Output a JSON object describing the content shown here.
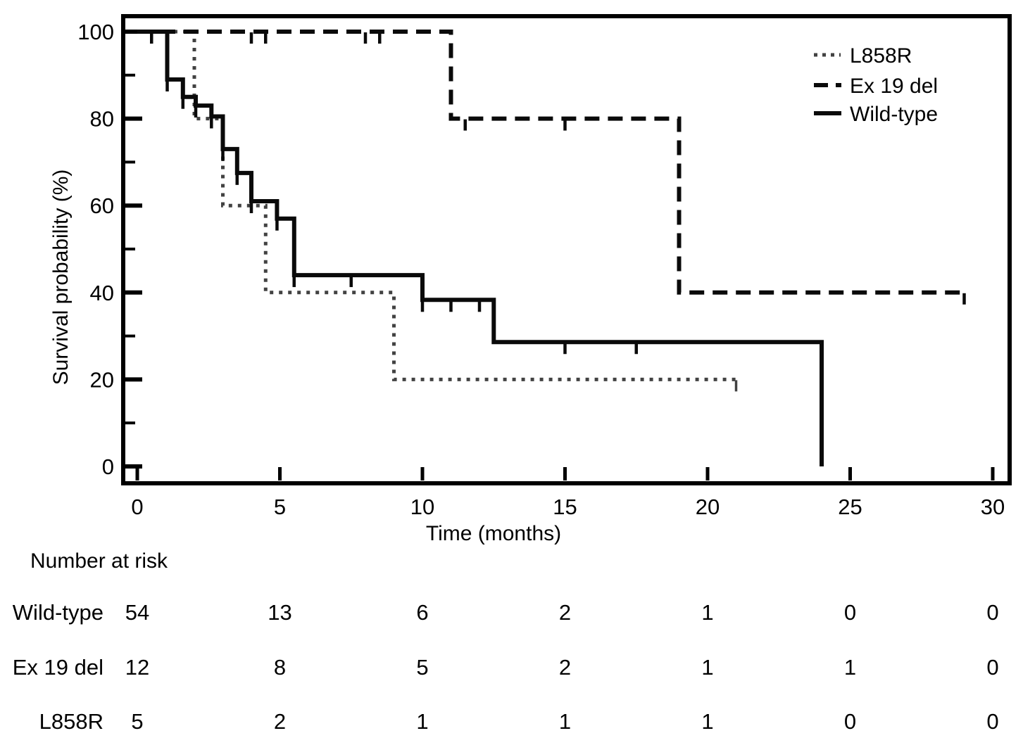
{
  "chart_data": {
    "type": "line",
    "subtype": "kaplan-meier-step",
    "title": "",
    "xlabel": "Time (months)",
    "ylabel": "Survival probability (%)",
    "xlim": [
      0,
      30
    ],
    "ylim": [
      0,
      100
    ],
    "x_ticks": [
      0,
      5,
      10,
      15,
      20,
      25,
      30
    ],
    "y_ticks_major": [
      0,
      20,
      40,
      60,
      80,
      100
    ],
    "y_ticks_minor": [
      10,
      30,
      50,
      70,
      90
    ],
    "grid": false,
    "legend_position": "top-right",
    "axis_color": "#000000",
    "series": [
      {
        "name": "L858R",
        "line_style": "dotted",
        "color": "#424242",
        "drop_times": [
          2,
          3,
          4.5,
          9
        ],
        "survival_levels": [
          100,
          80,
          60,
          40,
          20
        ],
        "end_time": 21,
        "censor_marks": [
          {
            "t": 21,
            "s": 20
          }
        ]
      },
      {
        "name": "Ex 19 del",
        "line_style": "dashed",
        "color": "#0a0a0a",
        "drop_times": [
          11,
          19
        ],
        "survival_levels": [
          100,
          80,
          40
        ],
        "end_time": 29,
        "censor_marks": [
          {
            "t": 4,
            "s": 100
          },
          {
            "t": 4.5,
            "s": 100
          },
          {
            "t": 8,
            "s": 100
          },
          {
            "t": 8.5,
            "s": 100
          },
          {
            "t": 11.5,
            "s": 80
          },
          {
            "t": 15,
            "s": 80
          },
          {
            "t": 29,
            "s": 40
          }
        ]
      },
      {
        "name": "Wild-type",
        "line_style": "solid",
        "color": "#0a0a0a",
        "drop_times": [
          1.05,
          1.6,
          2.05,
          2.6,
          3,
          3.5,
          4,
          4.9,
          5.5,
          10,
          12.5,
          24
        ],
        "survival_levels": [
          100,
          89,
          85,
          83,
          80.5,
          73,
          67.5,
          61,
          57,
          44,
          38.3,
          28.6,
          0
        ],
        "end_time": 24,
        "censor_marks": [
          {
            "t": 0.5,
            "s": 100
          },
          {
            "t": 1.05,
            "s": 89
          },
          {
            "t": 1.6,
            "s": 85
          },
          {
            "t": 2.05,
            "s": 83
          },
          {
            "t": 2.6,
            "s": 80.5
          },
          {
            "t": 3,
            "s": 73
          },
          {
            "t": 3.5,
            "s": 67.5
          },
          {
            "t": 4,
            "s": 61
          },
          {
            "t": 4.9,
            "s": 57
          },
          {
            "t": 5.5,
            "s": 44
          },
          {
            "t": 7.5,
            "s": 44
          },
          {
            "t": 10,
            "s": 38.3
          },
          {
            "t": 11,
            "s": 38.3
          },
          {
            "t": 12,
            "s": 38.3
          },
          {
            "t": 15,
            "s": 28.6
          },
          {
            "t": 17.5,
            "s": 28.6
          }
        ]
      }
    ]
  },
  "risk_table": {
    "title": "Number at risk",
    "time_points": [
      0,
      5,
      10,
      15,
      20,
      25,
      30
    ],
    "rows": [
      {
        "label": "Wild-type",
        "values": [
          54,
          13,
          6,
          2,
          1,
          0,
          0
        ]
      },
      {
        "label": "Ex 19 del",
        "values": [
          12,
          8,
          5,
          2,
          1,
          1,
          0
        ]
      },
      {
        "label": "L858R",
        "values": [
          5,
          2,
          1,
          1,
          1,
          0,
          0
        ]
      }
    ]
  }
}
